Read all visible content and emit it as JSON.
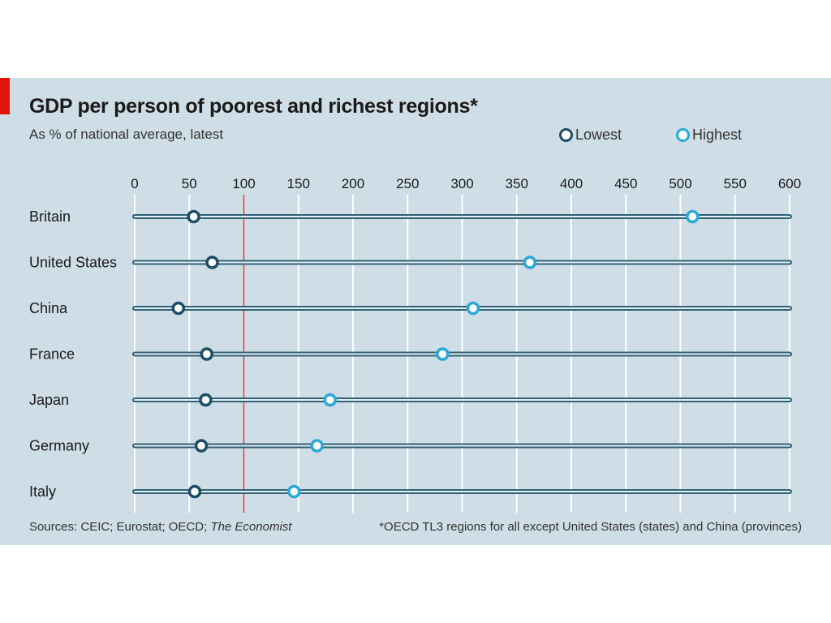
{
  "header": {
    "title": "GDP per person of poorest and richest regions*",
    "subtitle": "As % of national average, latest"
  },
  "legend": {
    "lowest_label": "Lowest",
    "highest_label": "Highest"
  },
  "footer": {
    "source_prefix": "Sources: CEIC; Eurostat; OECD; ",
    "source_italic": "The Economist",
    "footnote": "*OECD TL3 regions for all except United States (states) and China (provinces)"
  },
  "colors": {
    "background": "#cfdde6",
    "accent_red": "#e3120b",
    "lowest": "#1d4e63",
    "highest": "#2aa9d4",
    "track": "#2f6276",
    "reference_line": "#d33a2f",
    "grid": "#ffffff"
  },
  "chart_data": {
    "type": "scatter",
    "orientation": "horizontal",
    "title": "GDP per person of poorest and richest regions*",
    "subtitle": "As % of national average, latest",
    "xlim": [
      0,
      600
    ],
    "x_ticks": [
      0,
      50,
      100,
      150,
      200,
      250,
      300,
      350,
      400,
      450,
      500,
      550,
      600
    ],
    "reference_line": 100,
    "grid": true,
    "legend_position": "top-right",
    "categories": [
      "Britain",
      "United States",
      "China",
      "France",
      "Japan",
      "Germany",
      "Italy"
    ],
    "series": [
      {
        "name": "Lowest",
        "values": [
          54,
          71,
          40,
          66,
          65,
          61,
          55
        ]
      },
      {
        "name": "Highest",
        "values": [
          511,
          362,
          310,
          282,
          179,
          167,
          146
        ]
      }
    ]
  }
}
